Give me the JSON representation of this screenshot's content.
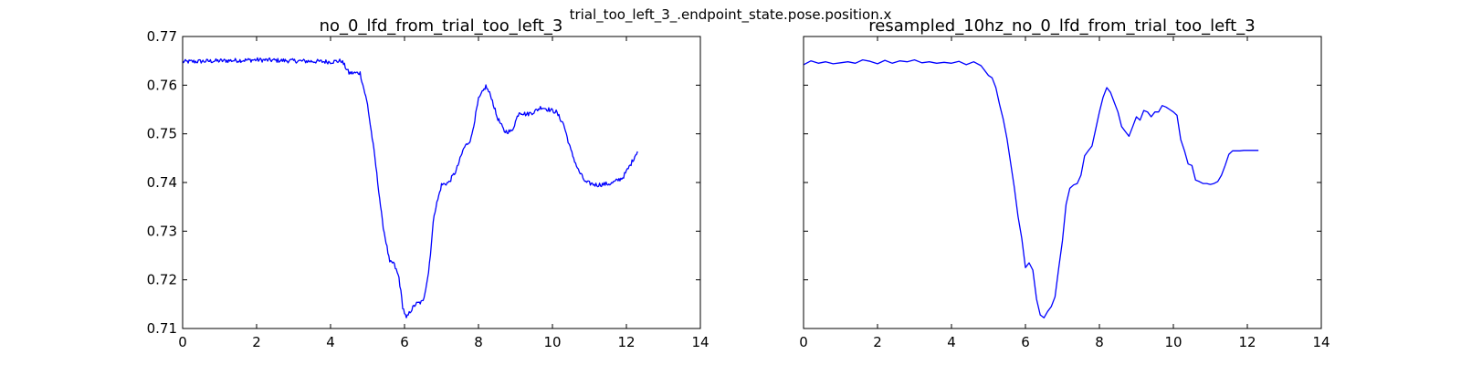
{
  "figure": {
    "suptitle": "trial_too_left_3_.endpoint_state.pose.position.x",
    "line_color": "#0000ff"
  },
  "chart_data": [
    {
      "type": "line",
      "title": "no_0_lfd_from_trial_too_left_3",
      "xlabel": "",
      "ylabel": "",
      "xlim": [
        0,
        14
      ],
      "ylim": [
        0.71,
        0.77
      ],
      "xticks": [
        "0",
        "2",
        "4",
        "6",
        "8",
        "10",
        "12",
        "14"
      ],
      "yticks": [
        "0.71",
        "0.72",
        "0.73",
        "0.74",
        "0.75",
        "0.76",
        "0.77"
      ],
      "show_yticklabels": true,
      "grid": false,
      "noisy": true,
      "series": [
        {
          "x": [
            0,
            1,
            2,
            3,
            4,
            4.3,
            4.5,
            4.8,
            5.0,
            5.2,
            5.4,
            5.6,
            5.7,
            5.85,
            5.95,
            6.05,
            6.15,
            6.3,
            6.5,
            6.65,
            6.8,
            7.0,
            7.2,
            7.4,
            7.6,
            7.8,
            8.0,
            8.2,
            8.35,
            8.5,
            8.7,
            8.9,
            9.1,
            9.3,
            9.5,
            9.7,
            9.9,
            10.1,
            10.3,
            10.5,
            10.7,
            10.9,
            11.2,
            11.6,
            11.9,
            12.1,
            12.3
          ],
          "y": [
            0.7648,
            0.765,
            0.7652,
            0.765,
            0.7648,
            0.765,
            0.7625,
            0.7625,
            0.756,
            0.745,
            0.732,
            0.7235,
            0.7235,
            0.7205,
            0.7145,
            0.712,
            0.7135,
            0.715,
            0.7155,
            0.7215,
            0.7335,
            0.7395,
            0.74,
            0.7425,
            0.747,
            0.749,
            0.757,
            0.7598,
            0.7575,
            0.7535,
            0.7505,
            0.7505,
            0.7545,
            0.754,
            0.7545,
            0.7555,
            0.755,
            0.7545,
            0.752,
            0.7465,
            0.7425,
            0.74,
            0.7395,
            0.7398,
            0.741,
            0.7435,
            0.7465
          ]
        }
      ]
    },
    {
      "type": "line",
      "title": "resampled_10hz_no_0_lfd_from_trial_too_left_3",
      "xlabel": "",
      "ylabel": "",
      "xlim": [
        0,
        14
      ],
      "ylim": [
        0.71,
        0.77
      ],
      "xticks": [
        "0",
        "2",
        "4",
        "6",
        "8",
        "10",
        "12",
        "14"
      ],
      "yticks": [
        "0.71",
        "0.72",
        "0.73",
        "0.74",
        "0.75",
        "0.76",
        "0.77"
      ],
      "show_yticklabels": false,
      "grid": false,
      "noisy": false,
      "series": [
        {
          "x": [
            0,
            0.2,
            0.4,
            0.6,
            0.8,
            1.0,
            1.2,
            1.4,
            1.6,
            1.8,
            2.0,
            2.2,
            2.4,
            2.6,
            2.8,
            3.0,
            3.2,
            3.4,
            3.6,
            3.8,
            4.0,
            4.2,
            4.4,
            4.6,
            4.8,
            5.0,
            5.1,
            5.2,
            5.3,
            5.4,
            5.5,
            5.6,
            5.7,
            5.8,
            5.9,
            6.0,
            6.1,
            6.2,
            6.3,
            6.4,
            6.5,
            6.6,
            6.7,
            6.8,
            6.9,
            7.0,
            7.1,
            7.2,
            7.3,
            7.4,
            7.5,
            7.6,
            7.7,
            7.8,
            7.9,
            8.0,
            8.1,
            8.2,
            8.3,
            8.4,
            8.5,
            8.6,
            8.7,
            8.8,
            8.9,
            9.0,
            9.1,
            9.2,
            9.3,
            9.4,
            9.5,
            9.6,
            9.7,
            9.8,
            9.9,
            10.0,
            10.1,
            10.2,
            10.3,
            10.4,
            10.5,
            10.6,
            10.7,
            10.8,
            10.9,
            11.0,
            11.1,
            11.2,
            11.3,
            11.4,
            11.5,
            11.6,
            11.7,
            11.8,
            11.9,
            12.0,
            12.1,
            12.2,
            12.3
          ],
          "y": [
            0.7642,
            0.765,
            0.7645,
            0.7648,
            0.7644,
            0.7646,
            0.7648,
            0.7645,
            0.7652,
            0.7649,
            0.7644,
            0.7651,
            0.7645,
            0.765,
            0.7648,
            0.7652,
            0.7646,
            0.7648,
            0.7645,
            0.7647,
            0.7645,
            0.7649,
            0.7642,
            0.7648,
            0.764,
            0.762,
            0.7615,
            0.7595,
            0.756,
            0.753,
            0.749,
            0.744,
            0.739,
            0.733,
            0.7285,
            0.7225,
            0.7235,
            0.722,
            0.716,
            0.7128,
            0.7122,
            0.7135,
            0.7145,
            0.7165,
            0.7225,
            0.728,
            0.7355,
            0.7388,
            0.7395,
            0.7398,
            0.7415,
            0.7455,
            0.7465,
            0.7475,
            0.751,
            0.7545,
            0.7575,
            0.7595,
            0.7585,
            0.7565,
            0.7545,
            0.7515,
            0.7505,
            0.7495,
            0.7515,
            0.7535,
            0.7528,
            0.7548,
            0.7545,
            0.7535,
            0.7545,
            0.7545,
            0.7558,
            0.7555,
            0.755,
            0.7545,
            0.7538,
            0.7488,
            0.7465,
            0.7438,
            0.7435,
            0.7405,
            0.7402,
            0.7398,
            0.7398,
            0.7396,
            0.7398,
            0.7402,
            0.7415,
            0.7435,
            0.7458,
            0.7465,
            0.7465,
            0.7465,
            0.7466,
            0.7466,
            0.7466,
            0.7466,
            0.7466
          ]
        }
      ]
    }
  ]
}
